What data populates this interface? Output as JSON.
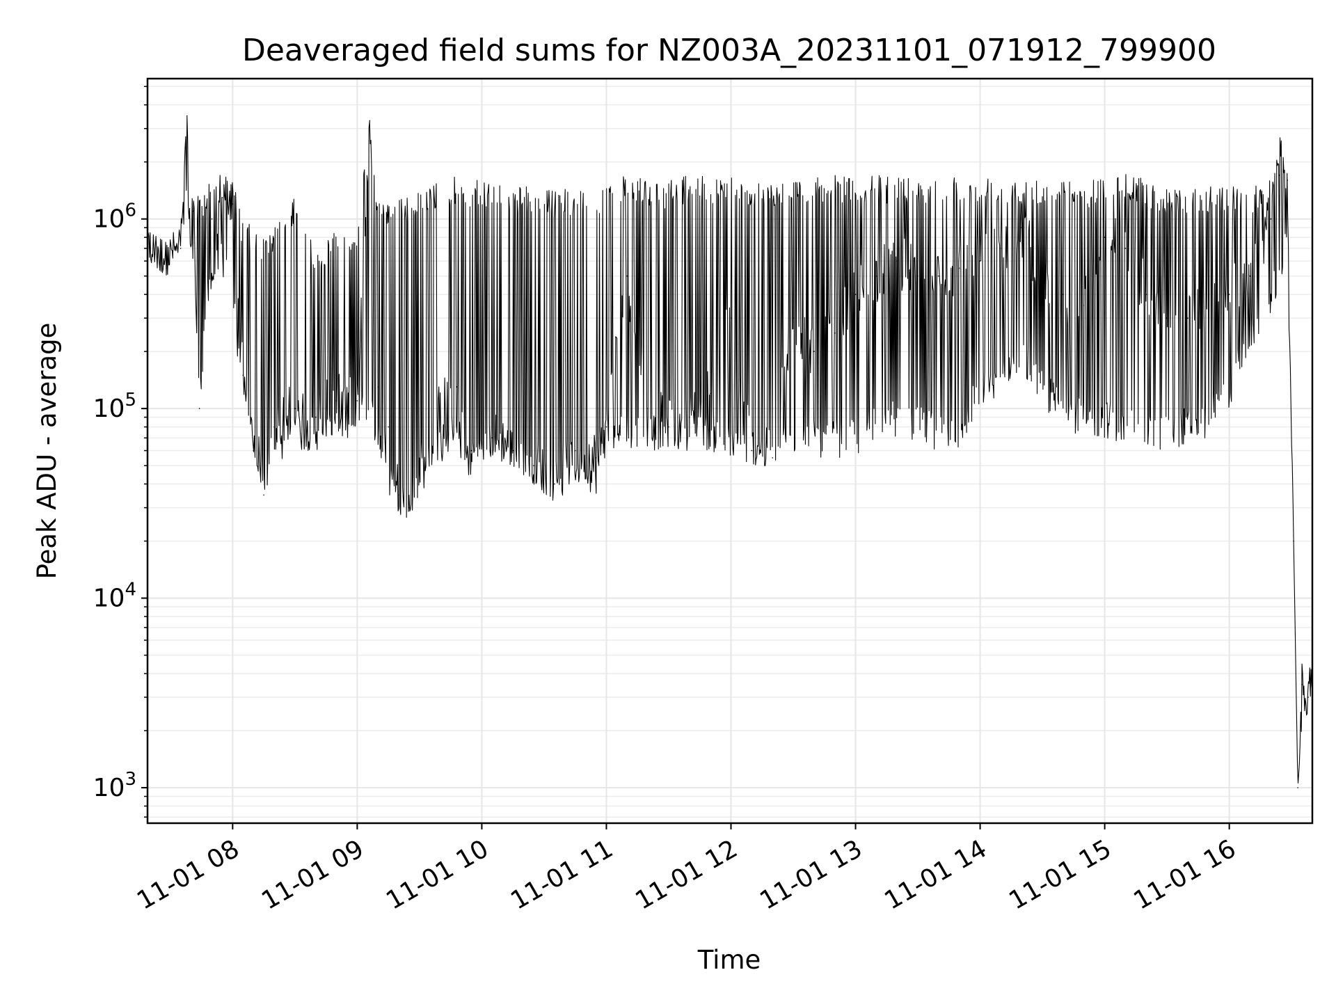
{
  "chart_data": {
    "type": "line",
    "title": "Deaveraged field sums for NZ003A_20231101_071912_799900",
    "xlabel": "Time",
    "ylabel": "Peak ADU - average",
    "y_scale": "log",
    "ylim": [
      650,
      5500000
    ],
    "xlim": [
      "2023-11-01 07:19",
      "2023-11-01 16:40"
    ],
    "grid": true,
    "line_color": "#000000",
    "x_ticks": [
      "11-01 08",
      "11-01 09",
      "11-01 10",
      "11-01 11",
      "11-01 12",
      "11-01 13",
      "11-01 14",
      "11-01 15",
      "11-01 16"
    ],
    "y_ticks": [
      {
        "base": "10",
        "exp": "3",
        "value": 1000
      },
      {
        "base": "10",
        "exp": "4",
        "value": 10000
      },
      {
        "base": "10",
        "exp": "5",
        "value": 100000
      },
      {
        "base": "10",
        "exp": "6",
        "value": 1000000
      }
    ],
    "series": [
      {
        "x": [
          "2023-11-01 07:20",
          "2023-11-01 07:28",
          "2023-11-01 07:35",
          "2023-11-01 07:38",
          "2023-11-01 07:41",
          "2023-11-01 07:44",
          "2023-11-01 07:50",
          "2023-11-01 07:55",
          "2023-11-01 08:00",
          "2023-11-01 08:05",
          "2023-11-01 08:10",
          "2023-11-01 08:15",
          "2023-11-01 08:20",
          "2023-11-01 08:30",
          "2023-11-01 08:40",
          "2023-11-01 08:50",
          "2023-11-01 09:00",
          "2023-11-01 09:06",
          "2023-11-01 09:10",
          "2023-11-01 09:15",
          "2023-11-01 09:20",
          "2023-11-01 09:25",
          "2023-11-01 09:30",
          "2023-11-01 09:40",
          "2023-11-01 09:48",
          "2023-11-01 09:55",
          "2023-11-01 10:05",
          "2023-11-01 10:15",
          "2023-11-01 10:25",
          "2023-11-01 10:35",
          "2023-11-01 10:45",
          "2023-11-01 10:55",
          "2023-11-01 11:00",
          "2023-11-01 11:10",
          "2023-11-01 11:20",
          "2023-11-01 11:30",
          "2023-11-01 11:40",
          "2023-11-01 11:50",
          "2023-11-01 12:00",
          "2023-11-01 12:10",
          "2023-11-01 12:20",
          "2023-11-01 12:30",
          "2023-11-01 12:40",
          "2023-11-01 12:50",
          "2023-11-01 13:00",
          "2023-11-01 13:10",
          "2023-11-01 13:20",
          "2023-11-01 13:30",
          "2023-11-01 13:40",
          "2023-11-01 13:50",
          "2023-11-01 14:00",
          "2023-11-01 14:10",
          "2023-11-01 14:20",
          "2023-11-01 14:30",
          "2023-11-01 14:40",
          "2023-11-01 14:50",
          "2023-11-01 15:00",
          "2023-11-01 15:10",
          "2023-11-01 15:20",
          "2023-11-01 15:30",
          "2023-11-01 15:40",
          "2023-11-01 15:50",
          "2023-11-01 16:00",
          "2023-11-01 16:10",
          "2023-11-01 16:20",
          "2023-11-01 16:24",
          "2023-11-01 16:28",
          "2023-11-01 16:31",
          "2023-11-01 16:33",
          "2023-11-01 16:35",
          "2023-11-01 16:38",
          "2023-11-01 16:40"
        ],
        "y": [
          700000,
          550000,
          700000,
          3500000,
          1100000,
          100000,
          1000000,
          1300000,
          1200000,
          150000,
          60000,
          35000,
          80000,
          100000,
          90000,
          110000,
          110000,
          3300000,
          130000,
          80000,
          35000,
          30000,
          45000,
          100000,
          130000,
          60000,
          70000,
          60000,
          50000,
          40000,
          60000,
          55000,
          80000,
          500000,
          100000,
          80000,
          90000,
          120000,
          300000,
          60000,
          55000,
          300000,
          200000,
          250000,
          400000,
          500000,
          600000,
          500000,
          500000,
          550000,
          600000,
          700000,
          900000,
          500000,
          400000,
          350000,
          800000,
          700000,
          400000,
          300000,
          300000,
          350000,
          400000,
          500000,
          1000000,
          1700000,
          1600000,
          20000,
          1000,
          3500,
          3000,
          4500
        ],
        "low_envelope": [
          600000,
          500000,
          600000,
          1000000,
          500000,
          100000,
          400000,
          500000,
          300000,
          100000,
          60000,
          35000,
          50000,
          60000,
          60000,
          60000,
          70000,
          80000,
          60000,
          35000,
          28000,
          26000,
          35000,
          50000,
          60000,
          40000,
          55000,
          50000,
          40000,
          32000,
          40000,
          35000,
          60000,
          60000,
          60000,
          60000,
          60000,
          60000,
          50000,
          50000,
          50000,
          55000,
          55000,
          55000,
          55000,
          70000,
          70000,
          65000,
          60000,
          60000,
          100000,
          120000,
          150000,
          100000,
          80000,
          70000,
          70000,
          65000,
          60000,
          60000,
          65000,
          70000,
          100000,
          200000,
          300000,
          400000,
          600000,
          20000,
          1000,
          2200,
          2500,
          3500
        ],
        "high_envelope": [
          850000,
          750000,
          1000000,
          3500000,
          1400000,
          1300000,
          1700000,
          1700000,
          1600000,
          1000000,
          900000,
          800000,
          900000,
          1300000,
          700000,
          900000,
          900000,
          3300000,
          1300000,
          1300000,
          1300000,
          1300000,
          1400000,
          1600000,
          1700000,
          1600000,
          1600000,
          1500000,
          1500000,
          1400000,
          1500000,
          1400000,
          1600000,
          1700000,
          1600000,
          1600000,
          1700000,
          1700000,
          1700000,
          1600000,
          1600000,
          1600000,
          1700000,
          1700000,
          1700000,
          1700000,
          1700000,
          1700000,
          1700000,
          1700000,
          1700000,
          1700000,
          1700000,
          1700000,
          1600000,
          1600000,
          1700000,
          1800000,
          1600000,
          1500000,
          1500000,
          1500000,
          1500000,
          1500000,
          1600000,
          3000000,
          1800000,
          20000,
          1000,
          4500,
          3500,
          6000
        ]
      }
    ]
  }
}
